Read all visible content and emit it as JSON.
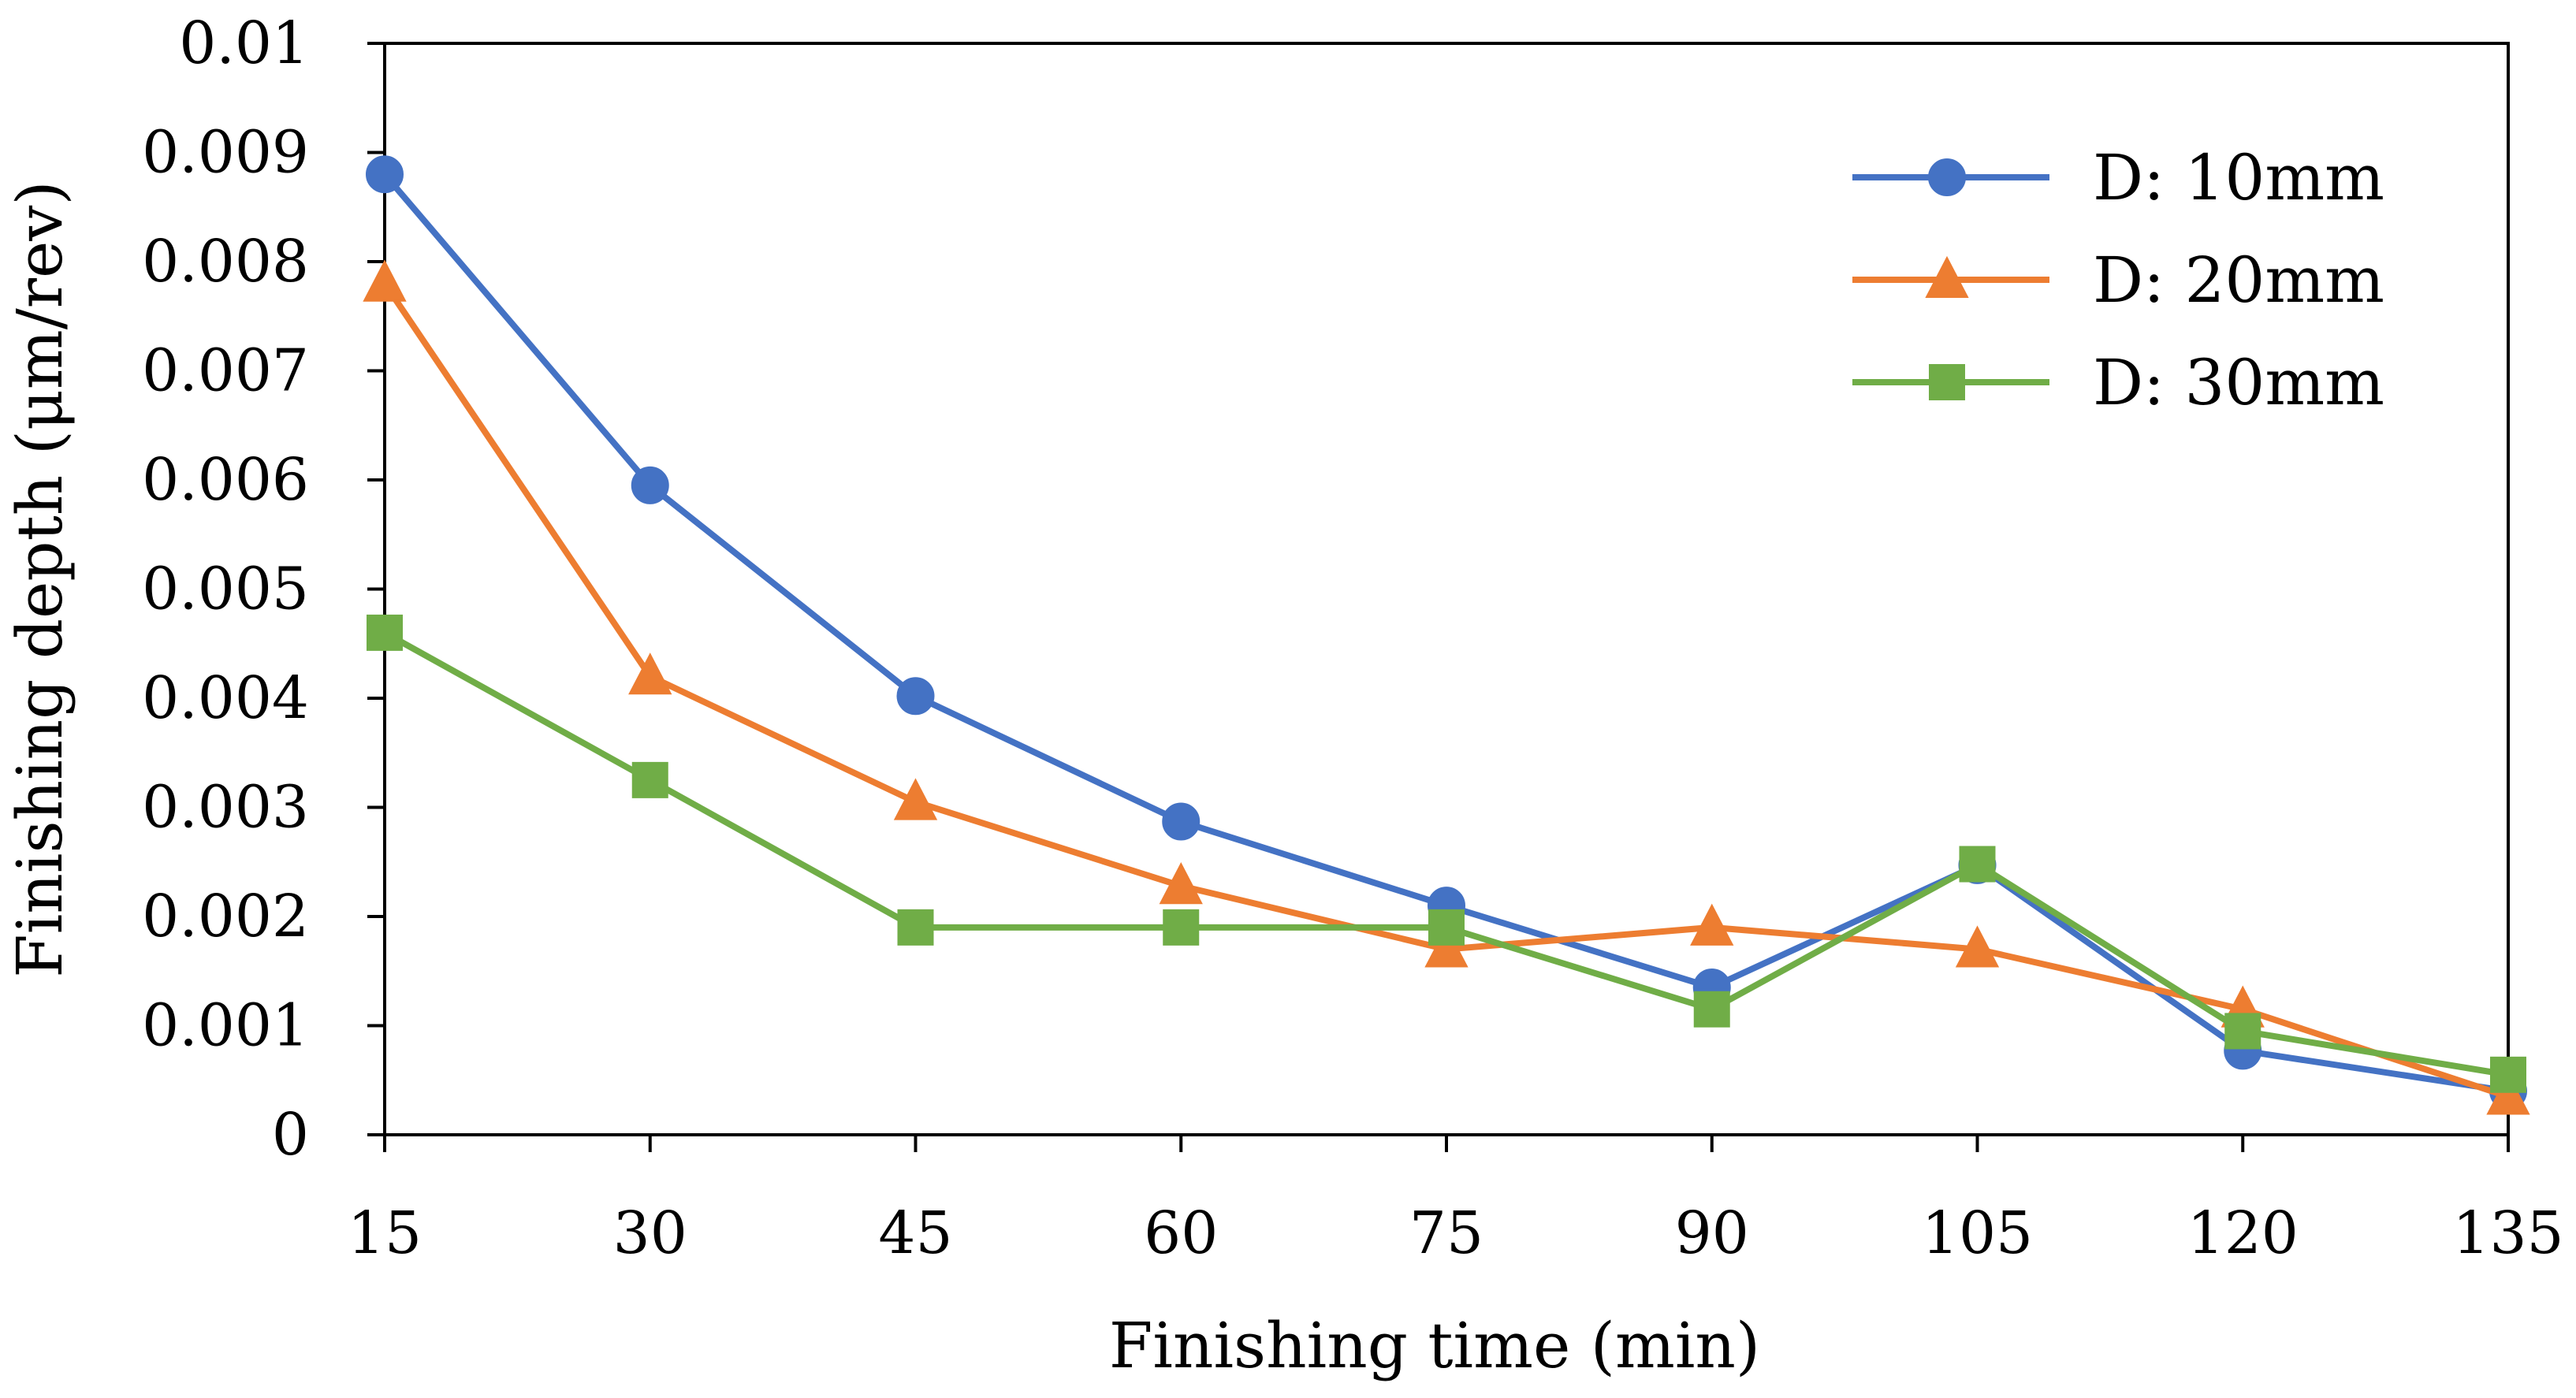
{
  "chart_data": {
    "type": "line",
    "title": "",
    "xlabel": "Finishing time (min)",
    "ylabel": "Finishing depth (μm/rev)",
    "categories": [
      "15",
      "30",
      "45",
      "60",
      "75",
      "90",
      "105",
      "120",
      "135"
    ],
    "x": [
      15,
      30,
      45,
      60,
      75,
      90,
      105,
      120,
      135
    ],
    "xlim": [
      15,
      135
    ],
    "ylim": [
      0,
      0.01
    ],
    "yticks": [
      "0",
      "0.001",
      "0.002",
      "0.003",
      "0.004",
      "0.005",
      "0.006",
      "0.007",
      "0.008",
      "0.009",
      "0.01"
    ],
    "grid": false,
    "legend_position": "top-right",
    "series": [
      {
        "name": "D: 10mm",
        "color": "#4472C4",
        "marker": "circle",
        "values": [
          0.0088,
          0.00595,
          0.00402,
          0.00287,
          0.0021,
          0.00135,
          0.00247,
          0.00077,
          0.0004
        ]
      },
      {
        "name": "D: 20mm",
        "color": "#ED7D31",
        "marker": "triangle",
        "values": [
          0.0078,
          0.0042,
          0.00305,
          0.00228,
          0.0017,
          0.0019,
          0.0017,
          0.00115,
          0.00035
        ]
      },
      {
        "name": "D: 30mm",
        "color": "#70AD47",
        "marker": "square",
        "values": [
          0.0046,
          0.00325,
          0.0019,
          0.0019,
          0.0019,
          0.00115,
          0.00248,
          0.00095,
          0.00055
        ]
      }
    ]
  }
}
